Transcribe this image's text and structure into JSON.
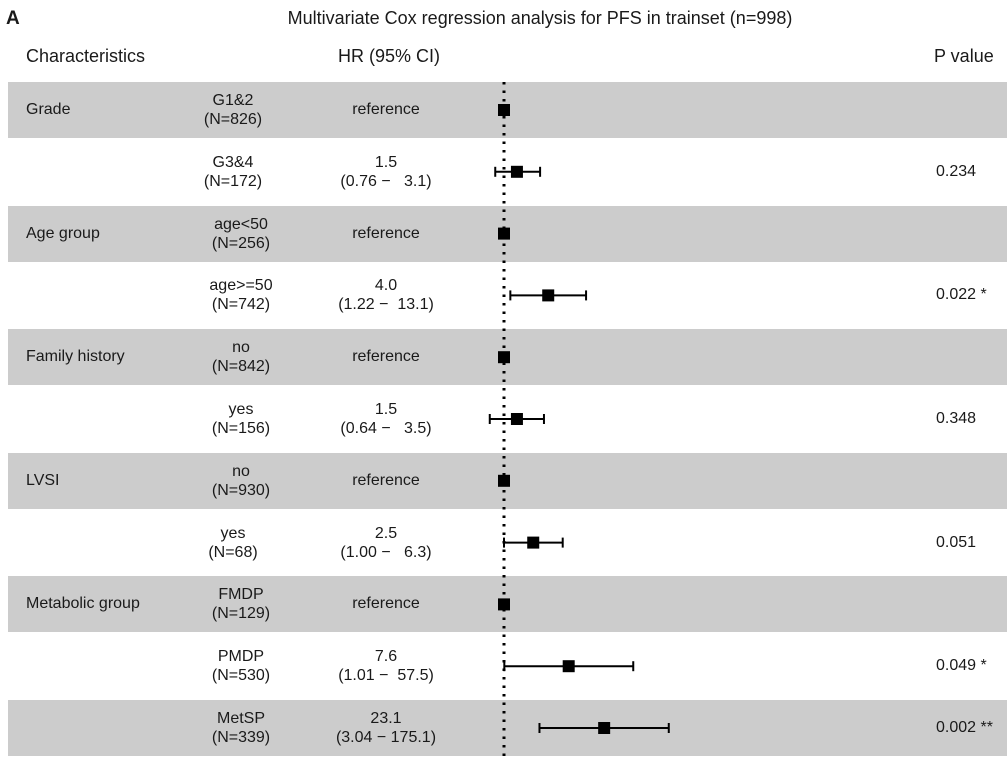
{
  "panel_label": "A",
  "title": "Multivariate Cox regression analysis for PFS in trainset (n=998)",
  "headers": {
    "characteristics": "Characteristics",
    "hr": "HR (95% CI)",
    "p": "P value"
  },
  "colors": {
    "shade": "#cccccc",
    "marker": "#000000"
  },
  "rows": [
    {
      "characteristic": "Grade",
      "level": "G1&2",
      "n": "(N=826)",
      "hr": "reference",
      "ci": "",
      "p": "",
      "shaded": true
    },
    {
      "characteristic": "",
      "level": "G3&4",
      "n": "(N=172)",
      "hr": "1.5",
      "ci": "(0.76 −   3.1)",
      "p": "0.234",
      "shaded": false
    },
    {
      "characteristic": "Age group",
      "level": "age<50",
      "n": "(N=256)",
      "hr": "reference",
      "ci": "",
      "p": "",
      "shaded": true
    },
    {
      "characteristic": "",
      "level": "age>=50",
      "n": "(N=742)",
      "hr": "4.0",
      "ci": "(1.22 −  13.1)",
      "p": "0.022 *",
      "shaded": false
    },
    {
      "characteristic": "Family history",
      "level": "no",
      "n": "(N=842)",
      "hr": "reference",
      "ci": "",
      "p": "",
      "shaded": true
    },
    {
      "characteristic": "",
      "level": "yes",
      "n": "(N=156)",
      "hr": "1.5",
      "ci": "(0.64 −   3.5)",
      "p": "0.348",
      "shaded": false
    },
    {
      "characteristic": "LVSI",
      "level": "no",
      "n": "(N=930)",
      "hr": "reference",
      "ci": "",
      "p": "",
      "shaded": true
    },
    {
      "characteristic": "",
      "level": "yes",
      "n": "(N=68)",
      "hr": "2.5",
      "ci": "(1.00 −   6.3)",
      "p": "0.051",
      "shaded": false
    },
    {
      "characteristic": "Metabolic group",
      "level": "FMDP",
      "n": "(N=129)",
      "hr": "reference",
      "ci": "",
      "p": "",
      "shaded": true
    },
    {
      "characteristic": "",
      "level": "PMDP",
      "n": "(N=530)",
      "hr": "7.6",
      "ci": "(1.01 −  57.5)",
      "p": "0.049 *",
      "shaded": false
    },
    {
      "characteristic": "",
      "level": "MetSP",
      "n": "(N=339)",
      "hr": "23.1",
      "ci": "(3.04 − 175.1)",
      "p": "0.002 **",
      "shaded": true
    }
  ],
  "chart_data": {
    "type": "forest",
    "x_scale": "log",
    "reference_line": 1,
    "points": [
      {
        "label": "G1&2",
        "hr": 1.0,
        "lower": null,
        "upper": null
      },
      {
        "label": "G3&4",
        "hr": 1.5,
        "lower": 0.76,
        "upper": 3.1
      },
      {
        "label": "age<50",
        "hr": 1.0,
        "lower": null,
        "upper": null
      },
      {
        "label": "age>=50",
        "hr": 4.0,
        "lower": 1.22,
        "upper": 13.1
      },
      {
        "label": "no",
        "hr": 1.0,
        "lower": null,
        "upper": null
      },
      {
        "label": "yes",
        "hr": 1.5,
        "lower": 0.64,
        "upper": 3.5
      },
      {
        "label": "no",
        "hr": 1.0,
        "lower": null,
        "upper": null
      },
      {
        "label": "yes",
        "hr": 2.5,
        "lower": 1.0,
        "upper": 6.3
      },
      {
        "label": "FMDP",
        "hr": 1.0,
        "lower": null,
        "upper": null
      },
      {
        "label": "PMDP",
        "hr": 7.6,
        "lower": 1.01,
        "upper": 57.5
      },
      {
        "label": "MetSP",
        "hr": 23.1,
        "lower": 3.04,
        "upper": 175.1
      }
    ]
  }
}
